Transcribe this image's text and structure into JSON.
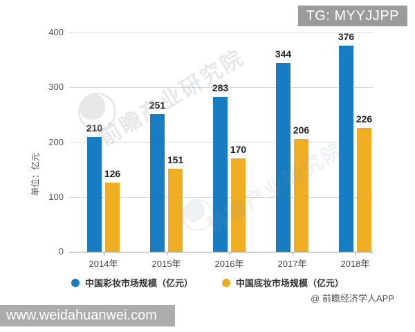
{
  "overlay": {
    "badge_text": "TG: MYYJJPP",
    "footer_url": "www.weidahuanwei.com"
  },
  "watermark": {
    "brand_text": "前瞻产业研究院",
    "credit_text": "@ 前瞻经济学人APP"
  },
  "chart_data": {
    "type": "bar",
    "title": "",
    "ylabel": "单位：亿元",
    "categories": [
      "2014年",
      "2015年",
      "2016年",
      "2017年",
      "2018年"
    ],
    "series": [
      {
        "name": "中国彩妆市场规模（亿元）",
        "color": "#187cc2",
        "values": [
          210,
          251,
          283,
          344,
          376
        ]
      },
      {
        "name": "中国底妆市场规模（亿元）",
        "color": "#efad24",
        "values": [
          126,
          151,
          170,
          206,
          226
        ]
      }
    ],
    "ylim": [
      0,
      400
    ],
    "yticks": [
      0,
      100,
      200,
      300,
      400
    ],
    "grid": true,
    "legend_position": "bottom"
  }
}
